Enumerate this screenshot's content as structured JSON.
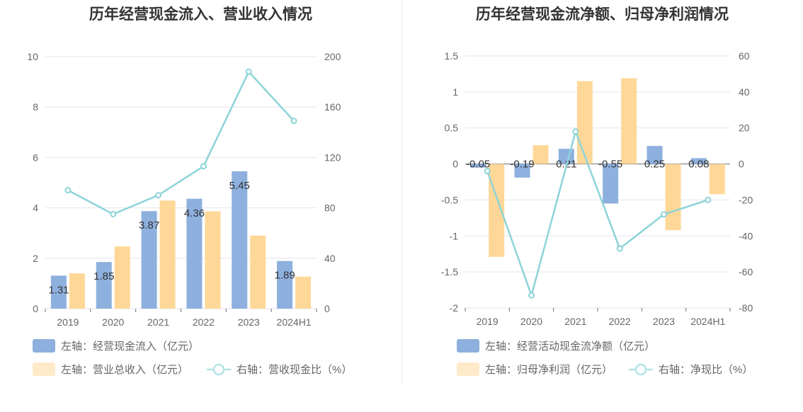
{
  "chart_data": [
    {
      "type": "bar+line",
      "title": "历年经营现金流入、营业收入情况",
      "categories": [
        "2019",
        "2020",
        "2021",
        "2022",
        "2023",
        "2024H1"
      ],
      "left_axis": {
        "ylim": [
          0,
          10
        ],
        "ticks": [
          "0",
          "2",
          "4",
          "6",
          "8",
          "10"
        ]
      },
      "right_axis": {
        "ylim": [
          0,
          200
        ],
        "ticks": [
          "0",
          "40",
          "80",
          "120",
          "160",
          "200"
        ]
      },
      "series": [
        {
          "name": "左轴：经营现金流入（亿元）",
          "type": "bar",
          "axis": "left",
          "color": "#8eb0de",
          "values": [
            1.31,
            1.85,
            3.87,
            4.36,
            5.45,
            1.89
          ],
          "labels": [
            "1.31",
            "1.85",
            "3.87",
            "4.36",
            "5.45",
            "1.89"
          ]
        },
        {
          "name": "左轴：营业总收入（亿元）",
          "type": "bar",
          "axis": "left",
          "color": "#ffd898",
          "values": [
            1.4,
            2.47,
            4.29,
            3.86,
            2.9,
            1.27
          ]
        },
        {
          "name": "右轴：营收现金比（%）",
          "type": "line",
          "axis": "right",
          "color": "#8dd4d8",
          "values": [
            94,
            75,
            90,
            113,
            188,
            149
          ]
        }
      ],
      "grid": true,
      "legend": "bottom-left"
    },
    {
      "type": "bar+line",
      "title": "历年经营现金流净额、归母净利润情况",
      "categories": [
        "2019",
        "2020",
        "2021",
        "2022",
        "2023",
        "2024H1"
      ],
      "left_axis": {
        "ylim": [
          -2,
          1.5
        ],
        "ticks": [
          "-2",
          "-1.5",
          "-1",
          "-0.5",
          "0",
          "0.5",
          "1",
          "1.5"
        ]
      },
      "right_axis": {
        "ylim": [
          -80,
          60
        ],
        "ticks": [
          "-80",
          "-60",
          "-40",
          "-20",
          "0",
          "20",
          "40",
          "60"
        ]
      },
      "series": [
        {
          "name": "左轴：经营活动现金流净额（亿元）",
          "type": "bar",
          "axis": "left",
          "color": "#8eb0de",
          "values": [
            -0.05,
            -0.19,
            0.21,
            -0.55,
            0.25,
            0.08
          ],
          "labels": [
            "-0.05",
            "-0.19",
            "0.21",
            "-0.55",
            "0.25",
            "0.08"
          ]
        },
        {
          "name": "左轴：归母净利润（亿元）",
          "type": "bar",
          "axis": "left",
          "color": "#ffd898",
          "values": [
            -1.29,
            0.26,
            1.15,
            1.19,
            -0.92,
            -0.42
          ]
        },
        {
          "name": "右轴：净现比（%）",
          "type": "line",
          "axis": "right",
          "color": "#8dd4d8",
          "values": [
            -4,
            -73,
            18,
            -47,
            -28,
            -20
          ]
        }
      ],
      "grid": true,
      "legend": "bottom-left"
    }
  ]
}
